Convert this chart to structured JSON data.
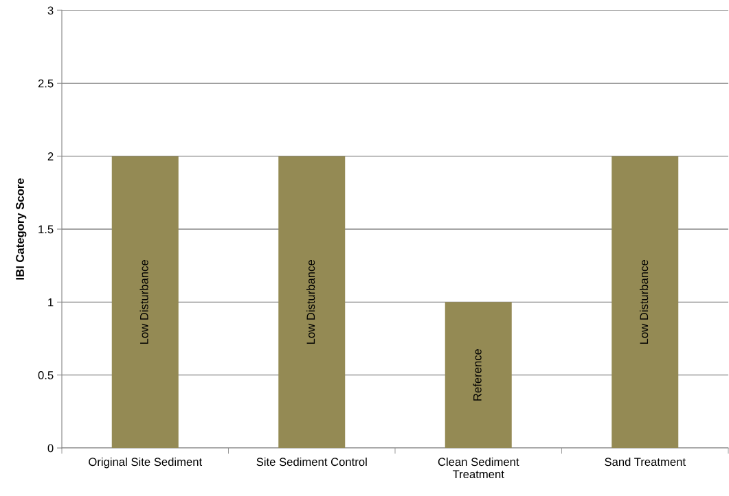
{
  "chart_data": {
    "type": "bar",
    "ylabel": "IBI Category Score",
    "categories": [
      "Original Site Sediment",
      "Site Sediment Control",
      "Clean Sediment\nTreatment",
      "Sand Treatment"
    ],
    "values": [
      2,
      2,
      1,
      2
    ],
    "color": "#948a54",
    "value_labels": [
      "Low Disturbance",
      "Low Disturbance",
      "Reference",
      "Low Disturbance"
    ],
    "ylim": [
      0,
      3
    ],
    "yticks": [
      0,
      0.5,
      1,
      1.5,
      2,
      2.5,
      3
    ],
    "grid": "y",
    "legend": false
  }
}
